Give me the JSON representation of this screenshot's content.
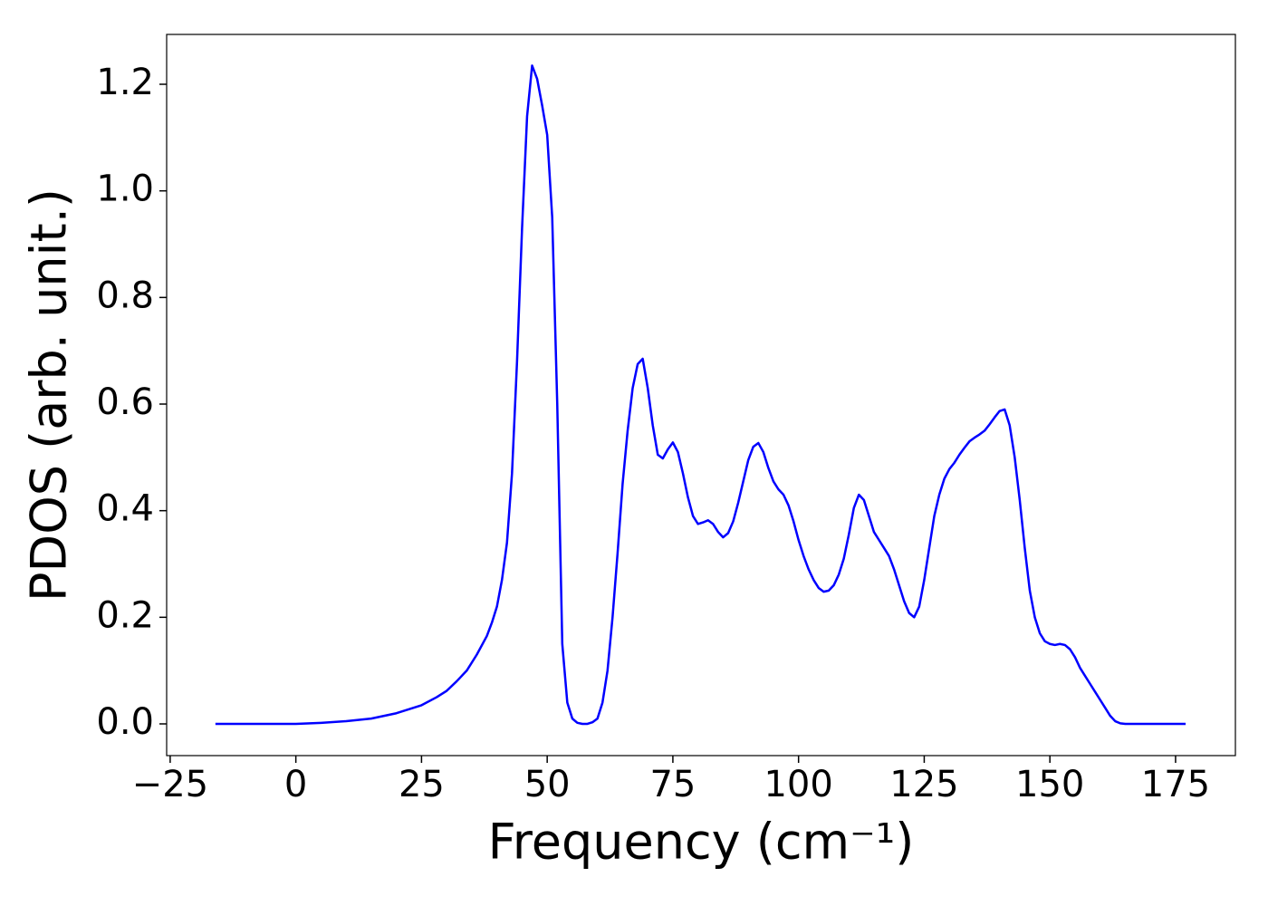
{
  "chart_data": {
    "type": "line",
    "xlabel": "Frequency (cm⁻¹)",
    "ylabel": "PDOS (arb. unit.)",
    "color": "#0000ff",
    "xlim": [
      -25.7,
      186.9
    ],
    "ylim": [
      -0.0595,
      1.2935
    ],
    "xticks": [
      {
        "value": -25,
        "label": "−25"
      },
      0,
      25,
      50,
      75,
      100,
      125,
      150,
      175
    ],
    "yticks": [
      {
        "value": 0,
        "label": "0.0"
      },
      0.2,
      0.4,
      0.6,
      0.8,
      {
        "value": 1,
        "label": "1.0"
      },
      1.2
    ],
    "x": [
      -16,
      -10,
      -5,
      0,
      5,
      10,
      15,
      20,
      25,
      28,
      30,
      32,
      34,
      36,
      38,
      39,
      40,
      41,
      42,
      43,
      44,
      45,
      46,
      47,
      48,
      49,
      50,
      51,
      52,
      53,
      54,
      55,
      56,
      57,
      58,
      59,
      60,
      61,
      62,
      63,
      64,
      65,
      66,
      67,
      68,
      69,
      70,
      71,
      72,
      73,
      74,
      75,
      76,
      77,
      78,
      79,
      80,
      81,
      82,
      83,
      84,
      85,
      86,
      87,
      88,
      89,
      90,
      91,
      92,
      93,
      94,
      95,
      96,
      97,
      98,
      99,
      100,
      101,
      102,
      103,
      104,
      105,
      106,
      107,
      108,
      109,
      110,
      111,
      112,
      113,
      114,
      115,
      116,
      117,
      118,
      119,
      120,
      121,
      122,
      123,
      124,
      125,
      126,
      127,
      128,
      129,
      130,
      131,
      132,
      133,
      134,
      135,
      136,
      137,
      138,
      139,
      140,
      141,
      142,
      143,
      144,
      145,
      146,
      147,
      148,
      149,
      150,
      151,
      152,
      153,
      154,
      155,
      156,
      157,
      158,
      159,
      160,
      161,
      162,
      163,
      164,
      165,
      170,
      177
    ],
    "values": [
      0,
      0,
      0,
      0,
      0.002,
      0.005,
      0.01,
      0.02,
      0.035,
      0.05,
      0.062,
      0.08,
      0.1,
      0.13,
      0.165,
      0.19,
      0.22,
      0.27,
      0.34,
      0.47,
      0.68,
      0.93,
      1.14,
      1.235,
      1.21,
      1.16,
      1.105,
      0.95,
      0.6,
      0.15,
      0.04,
      0.01,
      0.002,
      0,
      0,
      0.003,
      0.01,
      0.04,
      0.1,
      0.2,
      0.32,
      0.45,
      0.55,
      0.63,
      0.675,
      0.685,
      0.63,
      0.56,
      0.505,
      0.498,
      0.515,
      0.528,
      0.51,
      0.47,
      0.425,
      0.39,
      0.375,
      0.378,
      0.382,
      0.375,
      0.36,
      0.35,
      0.358,
      0.38,
      0.415,
      0.455,
      0.495,
      0.52,
      0.527,
      0.51,
      0.48,
      0.455,
      0.44,
      0.43,
      0.41,
      0.38,
      0.345,
      0.315,
      0.29,
      0.27,
      0.255,
      0.248,
      0.25,
      0.26,
      0.28,
      0.31,
      0.355,
      0.405,
      0.43,
      0.42,
      0.39,
      0.36,
      0.345,
      0.33,
      0.315,
      0.29,
      0.26,
      0.23,
      0.208,
      0.2,
      0.22,
      0.27,
      0.33,
      0.39,
      0.43,
      0.46,
      0.478,
      0.49,
      0.505,
      0.518,
      0.53,
      0.537,
      0.543,
      0.55,
      0.562,
      0.575,
      0.587,
      0.59,
      0.56,
      0.5,
      0.42,
      0.33,
      0.25,
      0.2,
      0.17,
      0.155,
      0.15,
      0.148,
      0.15,
      0.148,
      0.14,
      0.125,
      0.105,
      0.09,
      0.075,
      0.06,
      0.045,
      0.03,
      0.015,
      0.005,
      0.001,
      0,
      0,
      0
    ]
  }
}
